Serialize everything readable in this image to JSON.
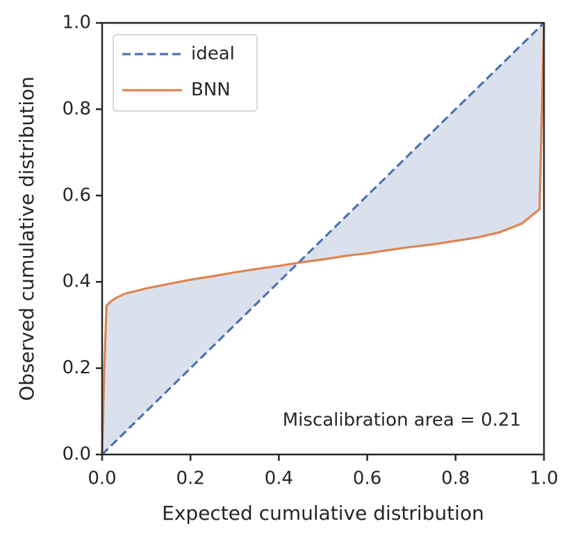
{
  "chart_data": {
    "type": "line",
    "xlabel": "Expected cumulative distribution",
    "ylabel": "Observed cumulative distribution",
    "annotation": "Miscalibration area = 0.21",
    "xlim": [
      0,
      1
    ],
    "ylim": [
      0,
      1
    ],
    "xticks": [
      {
        "value": 0,
        "label": "0.0"
      },
      0.2,
      0.4,
      0.6,
      0.8,
      {
        "value": 1,
        "label": "1.0"
      }
    ],
    "yticks": [
      {
        "value": 0,
        "label": "0.0"
      },
      0.2,
      0.4,
      0.6,
      0.8,
      {
        "value": 1,
        "label": "1.0"
      }
    ],
    "legend": "upper left",
    "fill_color": "#dae1ec",
    "series": [
      {
        "name": "ideal",
        "color": "#4c72b0",
        "dashed": true,
        "x": [
          0,
          1
        ],
        "values": [
          0,
          1
        ]
      },
      {
        "name": "BNN",
        "color": "#dd8452",
        "dashed": false,
        "x": [
          0,
          0.005,
          0.01,
          0.02,
          0.03,
          0.05,
          0.1,
          0.15,
          0.2,
          0.25,
          0.3,
          0.35,
          0.4,
          0.45,
          0.5,
          0.55,
          0.6,
          0.65,
          0.7,
          0.75,
          0.8,
          0.85,
          0.9,
          0.95,
          0.98,
          0.99,
          1.0
        ],
        "values": [
          0,
          0.2,
          0.345,
          0.355,
          0.362,
          0.372,
          0.385,
          0.395,
          0.405,
          0.413,
          0.422,
          0.43,
          0.437,
          0.445,
          0.452,
          0.46,
          0.466,
          0.474,
          0.481,
          0.487,
          0.495,
          0.503,
          0.515,
          0.535,
          0.56,
          0.568,
          1.0
        ]
      }
    ]
  }
}
